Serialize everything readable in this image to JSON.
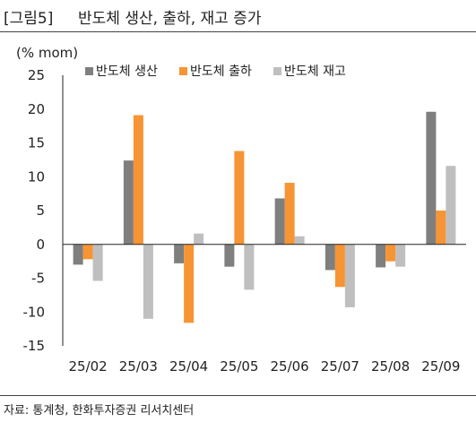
{
  "header": {
    "tag": "[그림5]",
    "title": "반도체 생산, 출하, 재고 증가"
  },
  "footer": {
    "source": "자료: 통계청, 한화투자증권 리서치센터"
  },
  "chart_data": {
    "type": "bar",
    "y_unit_label": "(% mom)",
    "categories": [
      "25/02",
      "25/03",
      "25/04",
      "25/05",
      "25/06",
      "25/07",
      "25/08",
      "25/09"
    ],
    "series": [
      {
        "name": "반도체 생산",
        "color": "#7f7f7f",
        "values": [
          -3.0,
          12.4,
          -2.8,
          -3.3,
          6.8,
          -3.8,
          -3.4,
          19.6
        ]
      },
      {
        "name": "반도체 출하",
        "color": "#f79433",
        "values": [
          -2.2,
          19.1,
          -11.6,
          13.8,
          9.1,
          -6.3,
          -2.5,
          5.0
        ]
      },
      {
        "name": "반도체 재고",
        "color": "#bfbfbf",
        "values": [
          -5.4,
          -11.0,
          1.6,
          -6.7,
          1.2,
          -9.3,
          -3.3,
          11.6
        ]
      }
    ],
    "ylim": [
      -15,
      25
    ],
    "yticks": [
      -15,
      -10,
      -5,
      0,
      5,
      10,
      15,
      20,
      25
    ],
    "grid": false,
    "legend": "top"
  }
}
